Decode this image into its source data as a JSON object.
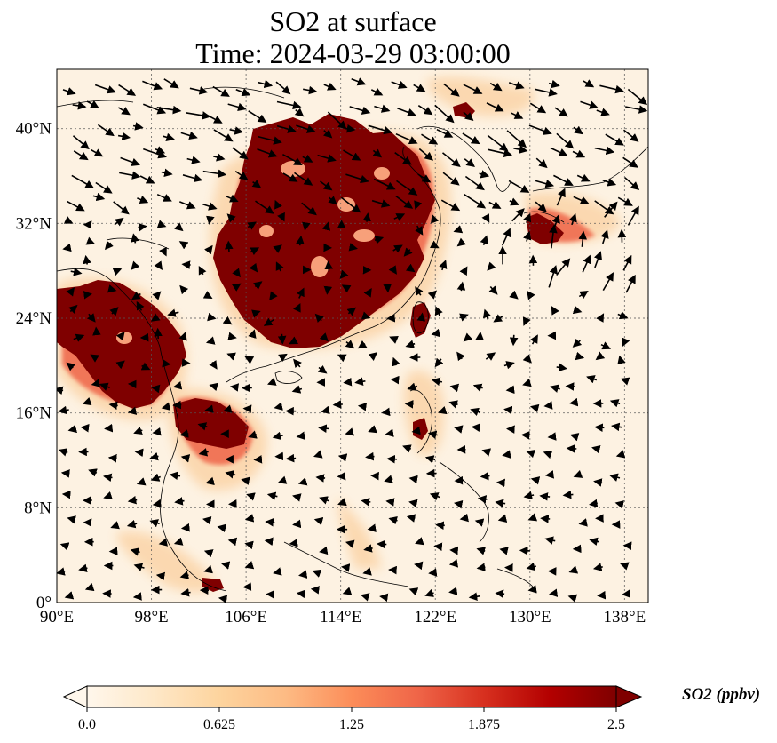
{
  "title_line1": "SO2 at surface",
  "title_line2": "Time: 2024-03-29 03:00:00",
  "map": {
    "extent": {
      "lon_min": 90,
      "lon_max": 140,
      "lat_min": 0,
      "lat_max": 45
    },
    "lon_ticks": [
      {
        "value": 90,
        "label": "90°E"
      },
      {
        "value": 98,
        "label": "98°E"
      },
      {
        "value": 106,
        "label": "106°E"
      },
      {
        "value": 114,
        "label": "114°E"
      },
      {
        "value": 122,
        "label": "122°E"
      },
      {
        "value": 130,
        "label": "130°E"
      },
      {
        "value": 138,
        "label": "138°E"
      }
    ],
    "lat_ticks": [
      {
        "value": 0,
        "label": "0°"
      },
      {
        "value": 8,
        "label": "8°N"
      },
      {
        "value": 16,
        "label": "16°N"
      },
      {
        "value": 24,
        "label": "24°N"
      },
      {
        "value": 32,
        "label": "32°N"
      },
      {
        "value": 40,
        "label": "40°N"
      }
    ],
    "gridlines": true,
    "colormap": "OrRd",
    "background_color": "#fdf2e2",
    "high_color": "#7f0000",
    "field_type": "SO2 concentration with wind vectors"
  },
  "colorbar": {
    "label": "SO2 (ppbv)",
    "ticks": [
      "0.0",
      "0.625",
      "1.25",
      "1.875",
      "2.5"
    ],
    "min": 0,
    "max": 2.5,
    "extend": "both",
    "colors": [
      "#fff7ec",
      "#fee8c8",
      "#fdd49e",
      "#fdbb84",
      "#fc8d59",
      "#ef6548",
      "#d7301f",
      "#b30000",
      "#7f0000"
    ]
  }
}
